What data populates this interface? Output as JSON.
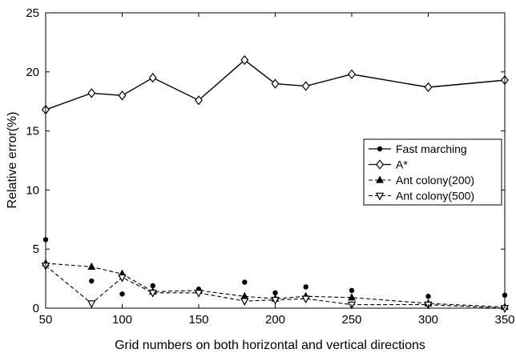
{
  "chart_data": {
    "type": "line",
    "title": "",
    "xlabel": "Grid numbers on both horizontal and vertical directions",
    "ylabel": "Relative error(%)",
    "xlim": [
      50,
      350
    ],
    "ylim": [
      0,
      25
    ],
    "xticks": [
      50,
      100,
      150,
      200,
      250,
      300,
      350
    ],
    "yticks": [
      0,
      5,
      10,
      15,
      20,
      25
    ],
    "grid": false,
    "legend_position": "right",
    "series": [
      {
        "name": "Fast marching",
        "line": "none",
        "marker": "dot",
        "x": [
          50,
          80,
          100,
          120,
          150,
          180,
          200,
          220,
          250,
          300,
          350
        ],
        "values": [
          5.8,
          2.3,
          1.2,
          1.9,
          1.6,
          2.2,
          1.3,
          1.8,
          1.5,
          1.0,
          1.1
        ]
      },
      {
        "name": "A*",
        "line": "solid",
        "marker": "diamond",
        "x": [
          50,
          80,
          100,
          120,
          150,
          180,
          200,
          220,
          250,
          300,
          350
        ],
        "values": [
          16.8,
          18.2,
          18.0,
          19.5,
          17.6,
          21.0,
          19.0,
          18.8,
          19.8,
          18.7,
          19.3
        ]
      },
      {
        "name": "Ant colony(200)",
        "line": "dashed",
        "marker": "triangle-up",
        "x": [
          50,
          80,
          100,
          120,
          150,
          180,
          200,
          220,
          250,
          300,
          350
        ],
        "values": [
          3.8,
          3.5,
          2.9,
          1.4,
          1.5,
          1.0,
          0.8,
          1.0,
          0.9,
          0.4,
          0.1
        ]
      },
      {
        "name": "Ant colony(500)",
        "line": "dashed",
        "marker": "triangle-down",
        "x": [
          50,
          80,
          100,
          120,
          150,
          180,
          200,
          220,
          250,
          300,
          350
        ],
        "values": [
          3.6,
          0.4,
          2.6,
          1.3,
          1.3,
          0.6,
          0.7,
          0.8,
          0.3,
          0.3,
          0.0
        ]
      }
    ]
  }
}
